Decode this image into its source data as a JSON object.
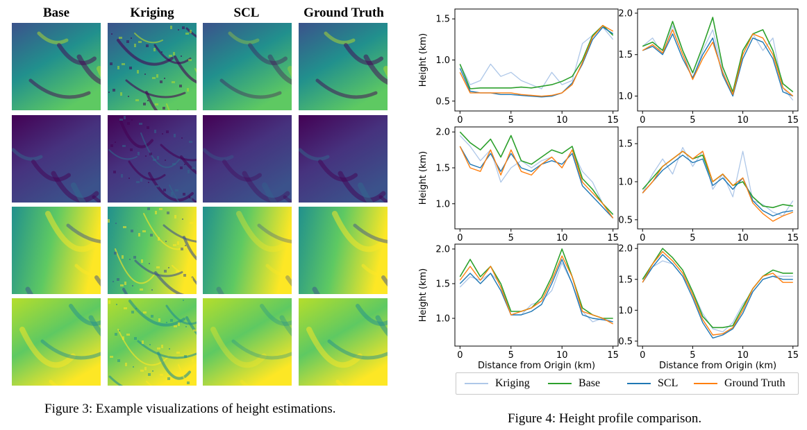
{
  "figure3": {
    "columns": [
      "Base",
      "Kriging",
      "SCL",
      "Ground Truth"
    ],
    "rows": 4,
    "caption": "Figure 3: Example visualizations of height estimations."
  },
  "figure4": {
    "caption": "Figure 4: Height profile comparison.",
    "legend": [
      {
        "name": "Kriging",
        "color": "#aec7e8"
      },
      {
        "name": "Base",
        "color": "#2ca02c"
      },
      {
        "name": "SCL",
        "color": "#1f77b4"
      },
      {
        "name": "Ground Truth",
        "color": "#ff7f0e"
      }
    ]
  },
  "chart_data": [
    {
      "type": "line",
      "xlabel": "",
      "ylabel": "Height (km)",
      "xlim": [
        -0.5,
        15.5
      ],
      "ylim": [
        0.38,
        1.62
      ],
      "xticks": [
        0,
        5,
        10,
        15
      ],
      "yticks": [
        0.5,
        1.0,
        1.5
      ],
      "x": [
        0,
        1,
        2,
        3,
        4,
        5,
        6,
        7,
        8,
        9,
        10,
        11,
        12,
        13,
        14,
        15
      ],
      "series": [
        {
          "name": "Kriging",
          "values": [
            0.95,
            0.7,
            0.75,
            0.95,
            0.8,
            0.85,
            0.75,
            0.7,
            0.65,
            0.85,
            0.7,
            0.75,
            1.2,
            1.3,
            1.4,
            1.25
          ]
        },
        {
          "name": "Base",
          "values": [
            0.95,
            0.65,
            0.66,
            0.66,
            0.66,
            0.66,
            0.67,
            0.66,
            0.68,
            0.7,
            0.74,
            0.8,
            1.0,
            1.3,
            1.42,
            1.3
          ]
        },
        {
          "name": "SCL",
          "values": [
            0.9,
            0.62,
            0.6,
            0.6,
            0.58,
            0.58,
            0.57,
            0.56,
            0.55,
            0.56,
            0.6,
            0.72,
            0.95,
            1.25,
            1.4,
            1.32
          ]
        },
        {
          "name": "Ground Truth",
          "values": [
            0.85,
            0.6,
            0.6,
            0.6,
            0.6,
            0.6,
            0.58,
            0.57,
            0.56,
            0.57,
            0.6,
            0.7,
            0.97,
            1.28,
            1.42,
            1.35
          ]
        }
      ]
    },
    {
      "type": "line",
      "xlabel": "",
      "ylabel": "",
      "xlim": [
        -0.5,
        15.5
      ],
      "ylim": [
        0.82,
        2.05
      ],
      "xticks": [
        0,
        5,
        10,
        15
      ],
      "yticks": [
        1.0,
        1.5,
        2.0
      ],
      "x": [
        0,
        1,
        2,
        3,
        4,
        5,
        6,
        7,
        8,
        9,
        10,
        11,
        12,
        13,
        14,
        15
      ],
      "series": [
        {
          "name": "Kriging",
          "values": [
            1.6,
            1.7,
            1.5,
            1.85,
            1.55,
            1.2,
            1.55,
            1.8,
            1.3,
            1.0,
            1.55,
            1.75,
            1.55,
            1.7,
            1.1,
            0.95
          ]
        },
        {
          "name": "Base",
          "values": [
            1.6,
            1.65,
            1.55,
            1.9,
            1.55,
            1.28,
            1.6,
            1.95,
            1.35,
            1.05,
            1.55,
            1.75,
            1.8,
            1.55,
            1.15,
            1.05
          ]
        },
        {
          "name": "SCL",
          "values": [
            1.55,
            1.6,
            1.5,
            1.75,
            1.45,
            1.22,
            1.5,
            1.7,
            1.25,
            1.0,
            1.45,
            1.7,
            1.65,
            1.45,
            1.05,
            1.0
          ]
        },
        {
          "name": "Ground Truth",
          "values": [
            1.55,
            1.62,
            1.52,
            1.8,
            1.5,
            1.2,
            1.45,
            1.65,
            1.28,
            1.02,
            1.5,
            1.75,
            1.7,
            1.5,
            1.1,
            1.0
          ]
        }
      ]
    },
    {
      "type": "line",
      "xlabel": "",
      "ylabel": "Height (km)",
      "xlim": [
        -0.5,
        15.5
      ],
      "ylim": [
        0.65,
        2.07
      ],
      "xticks": [
        0,
        5,
        10,
        15
      ],
      "yticks": [
        1.0,
        1.5,
        2.0
      ],
      "x": [
        0,
        1,
        2,
        3,
        4,
        5,
        6,
        7,
        8,
        9,
        10,
        11,
        12,
        13,
        14,
        15
      ],
      "series": [
        {
          "name": "Kriging",
          "values": [
            1.95,
            1.8,
            1.6,
            1.75,
            1.3,
            1.5,
            1.6,
            1.5,
            1.6,
            1.65,
            1.5,
            1.75,
            1.45,
            1.3,
            1.0,
            0.8
          ]
        },
        {
          "name": "Base",
          "values": [
            2.0,
            1.85,
            1.75,
            1.9,
            1.65,
            1.95,
            1.6,
            1.55,
            1.65,
            1.75,
            1.7,
            1.8,
            1.35,
            1.2,
            1.0,
            0.85
          ]
        },
        {
          "name": "SCL",
          "values": [
            1.8,
            1.55,
            1.5,
            1.7,
            1.45,
            1.7,
            1.5,
            1.45,
            1.55,
            1.6,
            1.55,
            1.7,
            1.25,
            1.1,
            0.95,
            0.8
          ]
        },
        {
          "name": "Ground Truth",
          "values": [
            1.8,
            1.5,
            1.45,
            1.75,
            1.4,
            1.75,
            1.45,
            1.4,
            1.55,
            1.65,
            1.5,
            1.75,
            1.3,
            1.15,
            1.0,
            0.8
          ]
        }
      ]
    },
    {
      "type": "line",
      "xlabel": "",
      "ylabel": "",
      "xlim": [
        -0.5,
        15.5
      ],
      "ylim": [
        0.38,
        1.72
      ],
      "xticks": [
        0,
        5,
        10,
        15
      ],
      "yticks": [
        0.5,
        1.0,
        1.5
      ],
      "x": [
        0,
        1,
        2,
        3,
        4,
        5,
        6,
        7,
        8,
        9,
        10,
        11,
        12,
        13,
        14,
        15
      ],
      "series": [
        {
          "name": "Kriging",
          "values": [
            0.85,
            1.1,
            1.3,
            1.1,
            1.45,
            1.2,
            1.4,
            0.9,
            1.1,
            0.8,
            1.4,
            0.75,
            0.7,
            0.6,
            0.55,
            0.75
          ]
        },
        {
          "name": "Base",
          "values": [
            0.9,
            1.05,
            1.2,
            1.3,
            1.4,
            1.3,
            1.35,
            1.0,
            1.1,
            0.95,
            1.0,
            0.8,
            0.68,
            0.66,
            0.7,
            0.68
          ]
        },
        {
          "name": "SCL",
          "values": [
            0.85,
            1.0,
            1.15,
            1.25,
            1.35,
            1.25,
            1.3,
            0.95,
            1.05,
            0.9,
            1.05,
            0.75,
            0.62,
            0.55,
            0.6,
            0.62
          ]
        },
        {
          "name": "Ground Truth",
          "values": [
            0.85,
            1.0,
            1.2,
            1.3,
            1.4,
            1.3,
            1.4,
            1.0,
            1.1,
            0.95,
            1.05,
            0.72,
            0.58,
            0.48,
            0.55,
            0.6
          ]
        }
      ]
    },
    {
      "type": "line",
      "xlabel": "Distance from Origin (km)",
      "ylabel": "Height (km)",
      "xlim": [
        -0.5,
        15.5
      ],
      "ylim": [
        0.6,
        2.07
      ],
      "xticks": [
        0,
        5,
        10,
        15
      ],
      "yticks": [
        1.0,
        1.5,
        2.0
      ],
      "x": [
        0,
        1,
        2,
        3,
        4,
        5,
        6,
        7,
        8,
        9,
        10,
        11,
        12,
        13,
        14,
        15
      ],
      "series": [
        {
          "name": "Kriging",
          "values": [
            1.45,
            1.6,
            1.55,
            1.65,
            1.5,
            1.05,
            1.05,
            1.2,
            1.25,
            1.4,
            1.8,
            1.5,
            1.1,
            0.95,
            1.0,
            0.95
          ]
        },
        {
          "name": "Base",
          "values": [
            1.6,
            1.85,
            1.6,
            1.75,
            1.5,
            1.1,
            1.1,
            1.15,
            1.3,
            1.6,
            2.0,
            1.6,
            1.15,
            1.05,
            1.0,
            1.0
          ]
        },
        {
          "name": "SCL",
          "values": [
            1.5,
            1.65,
            1.5,
            1.65,
            1.4,
            1.05,
            1.05,
            1.1,
            1.2,
            1.5,
            1.85,
            1.5,
            1.05,
            1.0,
            0.98,
            0.95
          ]
        },
        {
          "name": "Ground Truth",
          "values": [
            1.55,
            1.75,
            1.55,
            1.75,
            1.45,
            1.05,
            1.1,
            1.15,
            1.25,
            1.55,
            1.9,
            1.6,
            1.1,
            1.05,
            1.0,
            0.92
          ]
        }
      ]
    },
    {
      "type": "line",
      "xlabel": "Distance from Origin (km)",
      "ylabel": "",
      "xlim": [
        -0.5,
        15.5
      ],
      "ylim": [
        0.42,
        2.07
      ],
      "xticks": [
        0,
        5,
        10,
        15
      ],
      "yticks": [
        0.5,
        1.0,
        1.5,
        2.0
      ],
      "x": [
        0,
        1,
        2,
        3,
        4,
        5,
        6,
        7,
        8,
        9,
        10,
        11,
        12,
        13,
        14,
        15
      ],
      "series": [
        {
          "name": "Kriging",
          "values": [
            1.5,
            1.7,
            1.8,
            1.75,
            1.55,
            1.3,
            0.95,
            0.7,
            0.65,
            0.8,
            1.1,
            1.3,
            1.5,
            1.55,
            1.55,
            1.55
          ]
        },
        {
          "name": "Base",
          "values": [
            1.5,
            1.75,
            2.0,
            1.85,
            1.65,
            1.3,
            0.9,
            0.72,
            0.72,
            0.75,
            1.05,
            1.35,
            1.55,
            1.65,
            1.6,
            1.6
          ]
        },
        {
          "name": "SCL",
          "values": [
            1.45,
            1.7,
            1.9,
            1.75,
            1.55,
            1.2,
            0.8,
            0.55,
            0.6,
            0.7,
            0.95,
            1.3,
            1.5,
            1.55,
            1.5,
            1.5
          ]
        },
        {
          "name": "Ground Truth",
          "values": [
            1.45,
            1.75,
            1.95,
            1.8,
            1.6,
            1.25,
            0.85,
            0.6,
            0.62,
            0.72,
            1.0,
            1.35,
            1.55,
            1.6,
            1.45,
            1.45
          ]
        }
      ]
    }
  ]
}
